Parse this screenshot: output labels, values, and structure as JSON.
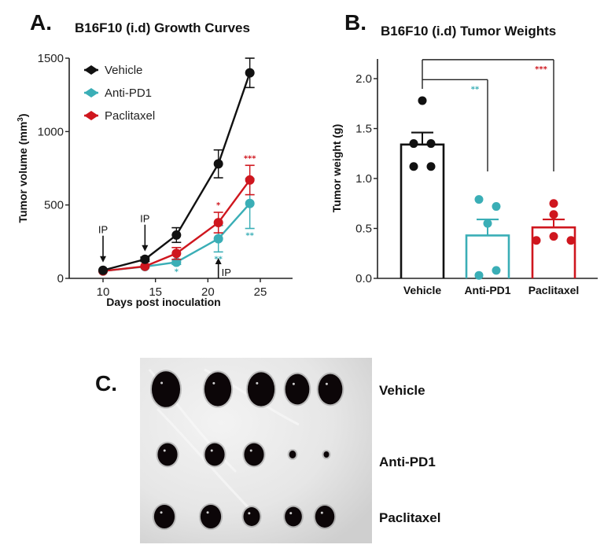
{
  "colors": {
    "vehicle": "#111111",
    "anti_pd1": "#3aaeb6",
    "paclitaxel": "#cf161e",
    "photo_background": "#e9e9e9",
    "tumor": "#0c0608"
  },
  "chart_data": [
    {
      "id": "A",
      "panel_letter": "A.",
      "type": "line",
      "title": "B16F10 (i.d) Growth Curves",
      "xlabel": "Days post inoculation",
      "ylabel": "Tumor volume (mm³)",
      "ylabel_base": "Tumor volume (mm",
      "ylabel_sup": "3",
      "ylabel_close": ")",
      "xlim": [
        6,
        28
      ],
      "ylim": [
        0,
        1500
      ],
      "xticks": [
        10,
        15,
        20,
        25
      ],
      "xtick_labels": [
        "10",
        "15",
        "20",
        "25"
      ],
      "yticks": [
        0,
        500,
        1000,
        1500
      ],
      "ytick_labels": [
        "0",
        "500",
        "1000",
        "1500"
      ],
      "grid": false,
      "legend_position": "top-left",
      "x": [
        10,
        14,
        17,
        21,
        24
      ],
      "series": [
        {
          "key": "vehicle",
          "name": "Vehicle",
          "values": [
            55,
            130,
            295,
            780,
            1400
          ],
          "error": [
            10,
            15,
            50,
            95,
            100
          ]
        },
        {
          "key": "paclitaxel",
          "name": "Paclitaxel",
          "values": [
            50,
            82,
            170,
            380,
            670
          ],
          "error": [
            5,
            8,
            40,
            70,
            100
          ]
        },
        {
          "key": "anti_pd1",
          "name": "Anti-PD1",
          "values": [
            50,
            80,
            110,
            270,
            510
          ],
          "error": [
            5,
            8,
            15,
            90,
            170
          ]
        }
      ],
      "legend": [
        {
          "key": "vehicle",
          "label": "Vehicle"
        },
        {
          "key": "anti_pd1",
          "label": "Anti-PD1"
        },
        {
          "key": "paclitaxel",
          "label": "Paclitaxel"
        }
      ],
      "significance": [
        {
          "series": "paclitaxel",
          "x": 21,
          "label": "*",
          "position": "above"
        },
        {
          "series": "paclitaxel",
          "x": 24,
          "label": "***",
          "position": "above"
        },
        {
          "series": "anti_pd1",
          "x": 17,
          "label": "*",
          "position": "below"
        },
        {
          "series": "anti_pd1",
          "x": 21,
          "label": "**",
          "position": "below"
        },
        {
          "series": "anti_pd1",
          "x": 24,
          "label": "**",
          "position": "below"
        }
      ],
      "annotations": [
        {
          "label": "IP",
          "x": 10,
          "direction": "down"
        },
        {
          "label": "IP",
          "x": 14,
          "direction": "down"
        },
        {
          "label": "IP",
          "x": 21,
          "direction": "up"
        }
      ]
    },
    {
      "id": "B",
      "panel_letter": "B.",
      "type": "bar",
      "title": "B16F10 (i.d) Tumor Weights",
      "xlabel": "",
      "ylabel": "Tumor weight (g)",
      "ylim": [
        0,
        2.2
      ],
      "yticks": [
        0,
        0.5,
        1.0,
        1.5,
        2.0
      ],
      "ytick_labels": [
        "0.0",
        "0.5",
        "1.0",
        "1.5",
        "2.0"
      ],
      "grid": false,
      "categories": [
        "Vehicle",
        "Anti-PD1",
        "Paclitaxel"
      ],
      "bars": [
        {
          "key": "vehicle",
          "label": "Vehicle",
          "mean": 1.34,
          "sem": 0.12,
          "points": [
            1.78,
            1.35,
            1.35,
            1.12,
            1.12
          ]
        },
        {
          "key": "anti_pd1",
          "label": "Anti-PD1",
          "mean": 0.43,
          "sem": 0.16,
          "points": [
            0.79,
            0.72,
            0.55,
            0.08,
            0.03
          ]
        },
        {
          "key": "paclitaxel",
          "label": "Paclitaxel",
          "mean": 0.51,
          "sem": 0.08,
          "points": [
            0.75,
            0.64,
            0.42,
            0.38,
            0.38
          ]
        }
      ],
      "comparisons": [
        {
          "from": "Vehicle",
          "to": "Anti-PD1",
          "label": "**",
          "color_key": "anti_pd1",
          "level": 1.99
        },
        {
          "from": "Vehicle",
          "to": "Paclitaxel",
          "label": "***",
          "color_key": "paclitaxel",
          "level": 2.19
        }
      ]
    }
  ],
  "photo_panel": {
    "panel_letter": "C.",
    "description": "Photograph of excised tumors",
    "rows": [
      {
        "label": "Vehicle",
        "tumor_relative_sizes": [
          1.0,
          0.95,
          0.95,
          0.85,
          0.85
        ]
      },
      {
        "label": "Anti-PD1",
        "tumor_relative_sizes": [
          0.72,
          0.72,
          0.72,
          0.25,
          0.2
        ]
      },
      {
        "label": "Paclitaxel",
        "tumor_relative_sizes": [
          0.75,
          0.75,
          0.6,
          0.62,
          0.7
        ]
      }
    ]
  }
}
